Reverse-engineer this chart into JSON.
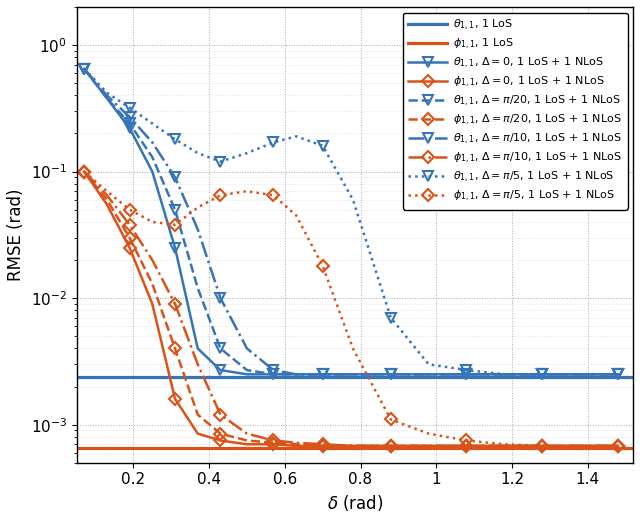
{
  "xlabel": "$\\delta$ (rad)",
  "ylabel": "RMSE (rad)",
  "blue": "#3574b8",
  "orange": "#d95319",
  "theta_los_flat": 0.0024,
  "phi_los_flat": 0.00065,
  "x": [
    0.07,
    0.13,
    0.19,
    0.25,
    0.31,
    0.37,
    0.43,
    0.5,
    0.57,
    0.63,
    0.7,
    0.78,
    0.88,
    0.98,
    1.08,
    1.18,
    1.28,
    1.38,
    1.48
  ],
  "theta_d0": [
    0.65,
    0.38,
    0.22,
    0.1,
    0.025,
    0.004,
    0.0027,
    0.0025,
    0.0025,
    0.0025,
    0.0025,
    0.0025,
    0.0025,
    0.0025,
    0.0025,
    0.0025,
    0.0025,
    0.0025,
    0.0025
  ],
  "phi_d0": [
    0.1,
    0.055,
    0.025,
    0.009,
    0.0016,
    0.00085,
    0.00075,
    0.0007,
    0.0007,
    0.00068,
    0.00068,
    0.00068,
    0.00068,
    0.00068,
    0.00068,
    0.00068,
    0.00068,
    0.00068,
    0.00068
  ],
  "theta_d20": [
    0.65,
    0.38,
    0.24,
    0.13,
    0.05,
    0.012,
    0.004,
    0.0027,
    0.0025,
    0.0025,
    0.0025,
    0.0025,
    0.0025,
    0.0025,
    0.0025,
    0.0025,
    0.0025,
    0.0025,
    0.0025
  ],
  "phi_d20": [
    0.1,
    0.06,
    0.03,
    0.013,
    0.004,
    0.0012,
    0.00085,
    0.00075,
    0.00072,
    0.0007,
    0.00068,
    0.00068,
    0.00068,
    0.00068,
    0.00068,
    0.00068,
    0.00068,
    0.00068,
    0.00068
  ],
  "theta_d10": [
    0.65,
    0.4,
    0.27,
    0.17,
    0.09,
    0.035,
    0.01,
    0.004,
    0.0027,
    0.0025,
    0.0025,
    0.0025,
    0.0025,
    0.0025,
    0.0025,
    0.0025,
    0.0025,
    0.0025,
    0.0025
  ],
  "phi_d10": [
    0.1,
    0.065,
    0.038,
    0.02,
    0.009,
    0.003,
    0.0012,
    0.00085,
    0.00075,
    0.00072,
    0.0007,
    0.00068,
    0.00068,
    0.00068,
    0.00068,
    0.00068,
    0.00068,
    0.00068,
    0.00068
  ],
  "theta_d5": [
    0.65,
    0.42,
    0.32,
    0.24,
    0.18,
    0.14,
    0.12,
    0.14,
    0.17,
    0.19,
    0.16,
    0.06,
    0.007,
    0.003,
    0.0027,
    0.0025,
    0.0025,
    0.0025,
    0.0025
  ],
  "phi_d5": [
    0.1,
    0.07,
    0.05,
    0.04,
    0.038,
    0.052,
    0.065,
    0.07,
    0.065,
    0.045,
    0.018,
    0.004,
    0.0011,
    0.00085,
    0.00075,
    0.0007,
    0.00068,
    0.00068,
    0.00068
  ],
  "legend_labels": [
    "$\\theta_{1,1}$, 1 LoS",
    "$\\phi_{1,1}$, 1 LoS",
    "$\\theta_{1,1}$, $\\Delta = 0$, 1 LoS + 1 NLoS",
    "$\\phi_{1,1}$, $\\Delta = 0$, 1 LoS + 1 NLoS",
    "$\\theta_{1,1}$, $\\Delta = \\pi/20$, 1 LoS + 1 NLoS",
    "$\\phi_{1,1}$, $\\Delta = \\pi/20$, 1 LoS + 1 NLoS",
    "$\\theta_{1,1}$, $\\Delta = \\pi/10$, 1 LoS + 1 NLoS",
    "$\\phi_{1,1}$, $\\Delta = \\pi/10$, 1 LoS + 1 NLoS",
    "$\\theta_{1,1}$, $\\Delta = \\pi/5$, 1 LoS + 1 NLoS",
    "$\\phi_{1,1}$, $\\Delta = \\pi/5$, 1 LoS + 1 NLoS"
  ]
}
